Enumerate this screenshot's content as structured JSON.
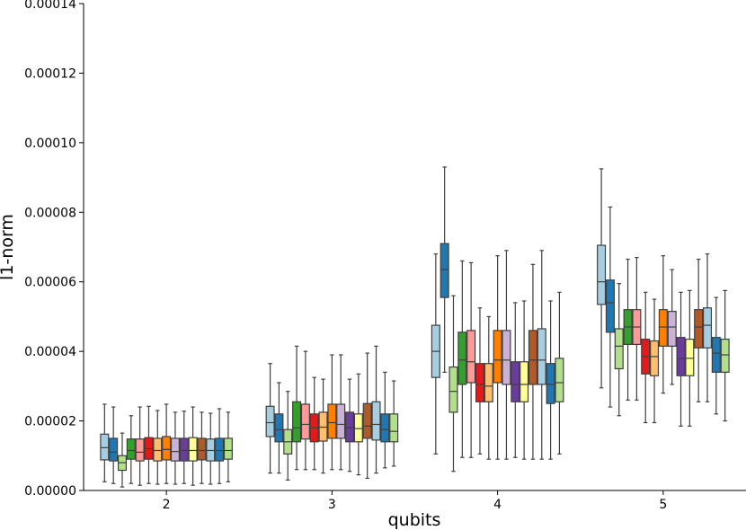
{
  "chart_data": {
    "type": "box",
    "xlabel": "qubits",
    "ylabel": "l1-norm",
    "ylim": [
      0,
      0.00014
    ],
    "y_ticks": [
      {
        "value": 0,
        "label": "0.00000"
      },
      {
        "value": 2e-05,
        "label": "0.00002"
      },
      {
        "value": 4e-05,
        "label": "0.00004"
      },
      {
        "value": 6e-05,
        "label": "0.00006"
      },
      {
        "value": 8e-05,
        "label": "0.00008"
      },
      {
        "value": 0.0001,
        "label": "0.00010"
      },
      {
        "value": 0.00012,
        "label": "0.00012"
      },
      {
        "value": 0.00014,
        "label": "0.00014"
      }
    ],
    "categories": [
      "2",
      "3",
      "4",
      "5"
    ],
    "palette": [
      "#a6cee3",
      "#1f78b4",
      "#b2df8a",
      "#33a02c",
      "#fb9a99",
      "#e31a1c",
      "#fdbf6f",
      "#ff7f00",
      "#cab2d6",
      "#6a3d9a",
      "#ffff99",
      "#b15928"
    ],
    "groups": [
      {
        "category": "2",
        "boxes": [
          {
            "color": "#a6cee3",
            "whislo": 2.5e-06,
            "q1": 8.8e-06,
            "med": 1.23e-05,
            "q3": 1.62e-05,
            "whishi": 2.48e-05
          },
          {
            "color": "#1f78b4",
            "whislo": 2e-06,
            "q1": 8.5e-06,
            "med": 1.1e-05,
            "q3": 1.5e-05,
            "whishi": 2.4e-05
          },
          {
            "color": "#b2df8a",
            "whislo": 1e-06,
            "q1": 5.8e-06,
            "med": 8e-06,
            "q3": 1e-05,
            "whishi": 1.65e-05
          },
          {
            "color": "#33a02c",
            "whislo": 2e-06,
            "q1": 9e-06,
            "med": 1.15e-05,
            "q3": 1.48e-05,
            "whishi": 2.15e-05
          },
          {
            "color": "#fb9a99",
            "whislo": 1.5e-06,
            "q1": 8.5e-06,
            "med": 1.1e-05,
            "q3": 1.48e-05,
            "whishi": 2.4e-05
          },
          {
            "color": "#e31a1c",
            "whislo": 2e-06,
            "q1": 9e-06,
            "med": 1.2e-05,
            "q3": 1.52e-05,
            "whishi": 2.42e-05
          },
          {
            "color": "#fdbf6f",
            "whislo": 1.8e-06,
            "q1": 8.5e-06,
            "med": 1.15e-05,
            "q3": 1.5e-05,
            "whishi": 2.3e-05
          },
          {
            "color": "#ff7f00",
            "whislo": 2e-06,
            "q1": 8.8e-06,
            "med": 1.18e-05,
            "q3": 1.55e-05,
            "whishi": 2.48e-05
          },
          {
            "color": "#cab2d6",
            "whislo": 1.8e-06,
            "q1": 8.5e-06,
            "med": 1.12e-05,
            "q3": 1.5e-05,
            "whishi": 2.25e-05
          },
          {
            "color": "#6a3d9a",
            "whislo": 2e-06,
            "q1": 8.5e-06,
            "med": 1.15e-05,
            "q3": 1.5e-05,
            "whishi": 2.28e-05
          },
          {
            "color": "#ffff99",
            "whislo": 1.5e-06,
            "q1": 8.5e-06,
            "med": 1.15e-05,
            "q3": 1.52e-05,
            "whishi": 2.4e-05
          },
          {
            "color": "#b15928",
            "whislo": 2e-06,
            "q1": 8.8e-06,
            "med": 1.15e-05,
            "q3": 1.5e-05,
            "whishi": 2.25e-05
          },
          {
            "color": "#a6cee3",
            "whislo": 1.8e-06,
            "q1": 8.5e-06,
            "med": 1.15e-05,
            "q3": 1.48e-05,
            "whishi": 2.22e-05
          },
          {
            "color": "#1f78b4",
            "whislo": 2e-06,
            "q1": 8.5e-06,
            "med": 1.15e-05,
            "q3": 1.5e-05,
            "whishi": 2.35e-05
          },
          {
            "color": "#b2df8a",
            "whislo": 2.5e-06,
            "q1": 9e-06,
            "med": 1.15e-05,
            "q3": 1.5e-05,
            "whishi": 2.25e-05
          }
        ]
      },
      {
        "category": "3",
        "boxes": [
          {
            "color": "#a6cee3",
            "whislo": 5e-06,
            "q1": 1.55e-05,
            "med": 1.95e-05,
            "q3": 2.42e-05,
            "whishi": 3.65e-05
          },
          {
            "color": "#1f78b4",
            "whislo": 5e-06,
            "q1": 1.4e-05,
            "med": 1.75e-05,
            "q3": 2.2e-05,
            "whishi": 3.1e-05
          },
          {
            "color": "#b2df8a",
            "whislo": 3e-06,
            "q1": 1.05e-05,
            "med": 1.4e-05,
            "q3": 1.75e-05,
            "whishi": 2.85e-05
          },
          {
            "color": "#33a02c",
            "whislo": 6e-06,
            "q1": 1.4e-05,
            "med": 1.8e-05,
            "q3": 2.55e-05,
            "whishi": 4.15e-05
          },
          {
            "color": "#fb9a99",
            "whislo": 6e-06,
            "q1": 1.48e-05,
            "med": 1.9e-05,
            "q3": 2.48e-05,
            "whishi": 4e-05
          },
          {
            "color": "#e31a1c",
            "whislo": 6e-06,
            "q1": 1.4e-05,
            "med": 1.8e-05,
            "q3": 2.2e-05,
            "whishi": 3.25e-05
          },
          {
            "color": "#fdbf6f",
            "whislo": 5e-06,
            "q1": 1.42e-05,
            "med": 1.82e-05,
            "q3": 2.25e-05,
            "whishi": 3.2e-05
          },
          {
            "color": "#ff7f00",
            "whislo": 6e-06,
            "q1": 1.5e-05,
            "med": 1.95e-05,
            "q3": 2.48e-05,
            "whishi": 3.9e-05
          },
          {
            "color": "#cab2d6",
            "whislo": 6e-06,
            "q1": 1.5e-05,
            "med": 1.9e-05,
            "q3": 2.48e-05,
            "whishi": 3.9e-05
          },
          {
            "color": "#6a3d9a",
            "whislo": 5.5e-06,
            "q1": 1.4e-05,
            "med": 1.8e-05,
            "q3": 2.25e-05,
            "whishi": 3.2e-05
          },
          {
            "color": "#ffff99",
            "whislo": 4.5e-06,
            "q1": 1.4e-05,
            "med": 1.78e-05,
            "q3": 2.2e-05,
            "whishi": 3.35e-05
          },
          {
            "color": "#b15928",
            "whislo": 3.5e-06,
            "q1": 1.5e-05,
            "med": 1.85e-05,
            "q3": 2.5e-05,
            "whishi": 3.95e-05
          },
          {
            "color": "#a6cee3",
            "whislo": 5e-06,
            "q1": 1.45e-05,
            "med": 1.9e-05,
            "q3": 2.55e-05,
            "whishi": 4.15e-05
          },
          {
            "color": "#1f78b4",
            "whislo": 6.5e-06,
            "q1": 1.4e-05,
            "med": 1.75e-05,
            "q3": 2.2e-05,
            "whishi": 3.4e-05
          },
          {
            "color": "#b2df8a",
            "whislo": 7e-06,
            "q1": 1.4e-05,
            "med": 1.7e-05,
            "q3": 2.2e-05,
            "whishi": 3.15e-05
          }
        ]
      },
      {
        "category": "4",
        "boxes": [
          {
            "color": "#a6cee3",
            "whislo": 1.05e-05,
            "q1": 3.25e-05,
            "med": 4e-05,
            "q3": 4.75e-05,
            "whishi": 6.8e-05
          },
          {
            "color": "#1f78b4",
            "whislo": 3.4e-05,
            "q1": 5.55e-05,
            "med": 6.35e-05,
            "q3": 7.1e-05,
            "whishi": 9.3e-05
          },
          {
            "color": "#b2df8a",
            "whislo": 5.5e-06,
            "q1": 2.25e-05,
            "med": 2.85e-05,
            "q3": 3.55e-05,
            "whishi": 5.6e-05
          },
          {
            "color": "#33a02c",
            "whislo": 9.5e-06,
            "q1": 3.05e-05,
            "med": 3.75e-05,
            "q3": 4.55e-05,
            "whishi": 6.6e-05
          },
          {
            "color": "#fb9a99",
            "whislo": 9.5e-06,
            "q1": 3.1e-05,
            "med": 3.7e-05,
            "q3": 4.6e-05,
            "whishi": 6.55e-05
          },
          {
            "color": "#e31a1c",
            "whislo": 1.05e-05,
            "q1": 2.55e-05,
            "med": 3.05e-05,
            "q3": 3.65e-05,
            "whishi": 5.25e-05
          },
          {
            "color": "#fdbf6f",
            "whislo": 9e-06,
            "q1": 2.55e-05,
            "med": 3e-05,
            "q3": 3.65e-05,
            "whishi": 5e-05
          },
          {
            "color": "#ff7f00",
            "whislo": 9e-06,
            "q1": 3.1e-05,
            "med": 3.75e-05,
            "q3": 4.6e-05,
            "whishi": 6.75e-05
          },
          {
            "color": "#cab2d6",
            "whislo": 9e-06,
            "q1": 3.05e-05,
            "med": 3.75e-05,
            "q3": 4.6e-05,
            "whishi": 6.9e-05
          },
          {
            "color": "#6a3d9a",
            "whislo": 9.5e-06,
            "q1": 2.55e-05,
            "med": 3.05e-05,
            "q3": 3.7e-05,
            "whishi": 5.4e-05
          },
          {
            "color": "#ffff99",
            "whislo": 9e-06,
            "q1": 2.55e-05,
            "med": 3.05e-05,
            "q3": 3.7e-05,
            "whishi": 5.45e-05
          },
          {
            "color": "#b15928",
            "whislo": 9e-06,
            "q1": 3.05e-05,
            "med": 3.75e-05,
            "q3": 4.6e-05,
            "whishi": 6.5e-05
          },
          {
            "color": "#a6cee3",
            "whislo": 9e-06,
            "q1": 3.05e-05,
            "med": 3.75e-05,
            "q3": 4.65e-05,
            "whishi": 6.9e-05
          },
          {
            "color": "#1f78b4",
            "whislo": 9e-06,
            "q1": 2.5e-05,
            "med": 3.05e-05,
            "q3": 3.65e-05,
            "whishi": 5.45e-05
          },
          {
            "color": "#b2df8a",
            "whislo": 1.05e-05,
            "q1": 2.55e-05,
            "med": 3.1e-05,
            "q3": 3.8e-05,
            "whishi": 5.7e-05
          }
        ]
      },
      {
        "category": "5",
        "boxes": [
          {
            "color": "#a6cee3",
            "whislo": 2.95e-05,
            "q1": 5.35e-05,
            "med": 6e-05,
            "q3": 7.05e-05,
            "whishi": 9.25e-05
          },
          {
            "color": "#1f78b4",
            "whislo": 2.4e-05,
            "q1": 4.55e-05,
            "med": 5.4e-05,
            "q3": 6.05e-05,
            "whishi": 8.15e-05
          },
          {
            "color": "#b2df8a",
            "whislo": 2.15e-05,
            "q1": 3.5e-05,
            "med": 4.15e-05,
            "q3": 4.65e-05,
            "whishi": 5.95e-05
          },
          {
            "color": "#33a02c",
            "whislo": 2.6e-05,
            "q1": 4.2e-05,
            "med": 4.7e-05,
            "q3": 5.2e-05,
            "whishi": 6.65e-05
          },
          {
            "color": "#fb9a99",
            "whislo": 2.6e-05,
            "q1": 4.2e-05,
            "med": 4.7e-05,
            "q3": 5.2e-05,
            "whishi": 6.7e-05
          },
          {
            "color": "#e31a1c",
            "whislo": 1.95e-05,
            "q1": 3.35e-05,
            "med": 3.85e-05,
            "q3": 4.35e-05,
            "whishi": 5.7e-05
          },
          {
            "color": "#fdbf6f",
            "whislo": 1.95e-05,
            "q1": 3.3e-05,
            "med": 3.85e-05,
            "q3": 4.3e-05,
            "whishi": 5.5e-05
          },
          {
            "color": "#ff7f00",
            "whislo": 2.8e-05,
            "q1": 4.15e-05,
            "med": 4.7e-05,
            "q3": 5.2e-05,
            "whishi": 6.75e-05
          },
          {
            "color": "#cab2d6",
            "whislo": 3.05e-05,
            "q1": 4.15e-05,
            "med": 4.7e-05,
            "q3": 5.15e-05,
            "whishi": 6.35e-05
          },
          {
            "color": "#6a3d9a",
            "whislo": 1.85e-05,
            "q1": 3.3e-05,
            "med": 3.8e-05,
            "q3": 4.4e-05,
            "whishi": 5.7e-05
          },
          {
            "color": "#ffff99",
            "whislo": 1.85e-05,
            "q1": 3.3e-05,
            "med": 3.8e-05,
            "q3": 4.35e-05,
            "whishi": 5.75e-05
          },
          {
            "color": "#b15928",
            "whislo": 2.55e-05,
            "q1": 4.1e-05,
            "med": 4.7e-05,
            "q3": 5.2e-05,
            "whishi": 6.65e-05
          },
          {
            "color": "#a6cee3",
            "whislo": 2.55e-05,
            "q1": 4.1e-05,
            "med": 4.75e-05,
            "q3": 5.25e-05,
            "whishi": 6.8e-05
          },
          {
            "color": "#1f78b4",
            "whislo": 2.2e-05,
            "q1": 3.4e-05,
            "med": 3.95e-05,
            "q3": 4.4e-05,
            "whishi": 5.55e-05
          },
          {
            "color": "#b2df8a",
            "whislo": 2e-05,
            "q1": 3.4e-05,
            "med": 3.9e-05,
            "q3": 4.35e-05,
            "whishi": 5.75e-05
          }
        ]
      }
    ],
    "grid": false,
    "legend": "none"
  }
}
